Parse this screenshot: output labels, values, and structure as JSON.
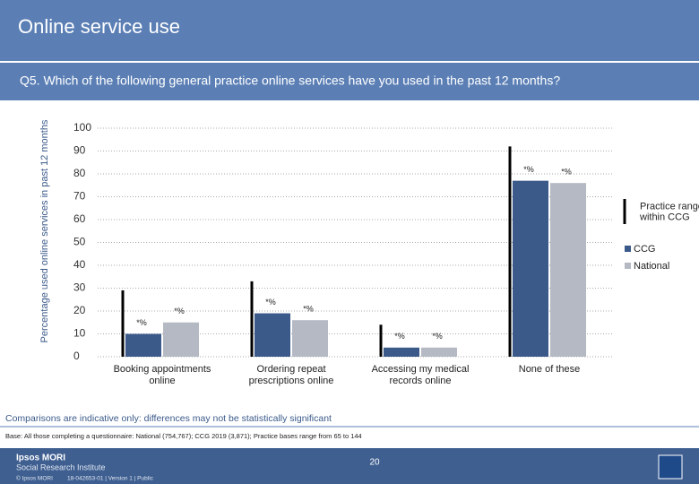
{
  "header": {
    "title": "Online service use",
    "question": "Q5. Which of the following general practice online services have you used in the past 12 months?"
  },
  "chart_data": {
    "type": "bar",
    "y_label": "Percentage used online services in past 12 months",
    "categories": [
      "Booking appointments online",
      "Ordering repeat prescriptions online",
      "Accessing my medical records online",
      "None of these"
    ],
    "series": [
      {
        "name": "CCG",
        "color": "#3b5a8a",
        "values": [
          10,
          19,
          4,
          77
        ],
        "value_labels": [
          "*%",
          "*%",
          "*%",
          "*%"
        ]
      },
      {
        "name": "National",
        "color": "#b4b9c3",
        "values": [
          15,
          16,
          4,
          76
        ],
        "value_labels": [
          "*%",
          "*%",
          "*%",
          "*%"
        ]
      }
    ],
    "range": {
      "name": "Practice range within CCG",
      "color": "#000000",
      "low": [
        0,
        0,
        0,
        0
      ],
      "high": [
        29,
        33,
        14,
        92
      ]
    },
    "ylim": [
      0,
      100
    ],
    "yticks": [
      0,
      10,
      20,
      30,
      40,
      50,
      60,
      70,
      80,
      90,
      100
    ],
    "grid": true
  },
  "footer": {
    "note": "Comparisons are indicative only: differences may not be statistically significant",
    "base": "Base: All those completing a questionnaire: National (754,767); CCG 2019 (3,871); Practice bases range from 65 to 144",
    "page": "20",
    "brand": "Ipsos MORI",
    "brand_sub": "Social Research Institute",
    "copyright": "© Ipsos MORI",
    "job": "18-042653-01 | Version 1 | Public"
  }
}
